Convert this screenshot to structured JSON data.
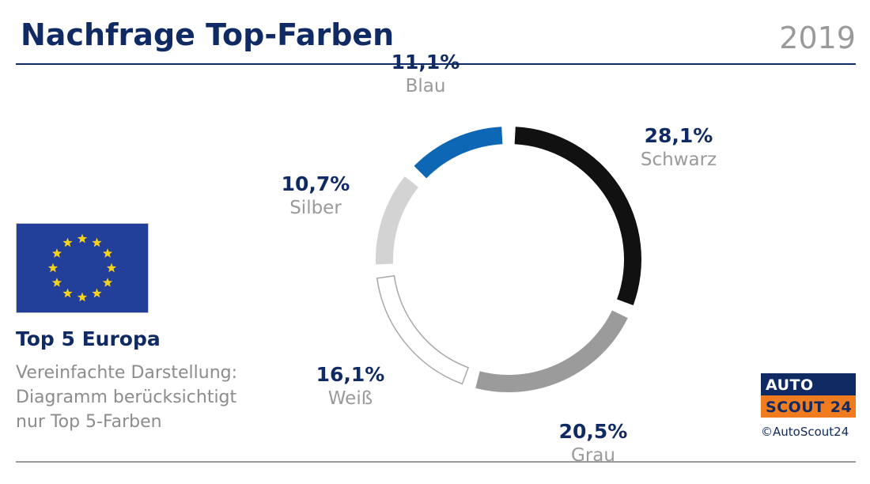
{
  "header": {
    "title": "Nachfrage Top-Farben",
    "year": "2019"
  },
  "region": {
    "flag_icon": "eu-flag-icon",
    "title": "Top 5 Europa",
    "note": "Vereinfachte Darstellung:\nDiagramm berücksichtigt\nnur Top 5-Farben"
  },
  "brand": {
    "line1": "AUTO",
    "line2": "SCOUT 24",
    "copyright": "©AutoScout24"
  },
  "colors": {
    "navy": "#102a63",
    "orange": "#f07c1f",
    "schwarz": "#111111",
    "grau": "#9b9b9b",
    "weiss": "#ffffff",
    "silber": "#d3d3d3",
    "blau": "#0d67b5"
  },
  "chart_data": {
    "type": "pie",
    "title": "Nachfrage Top-Farben",
    "subtitle": "2019",
    "categories": [
      "Schwarz",
      "Grau",
      "Weiß",
      "Silber",
      "Blau"
    ],
    "values": [
      28.1,
      20.5,
      16.1,
      10.7,
      11.1
    ],
    "labels": [
      "28,1%",
      "20,5%",
      "16,1%",
      "10,7%",
      "11,1%"
    ],
    "colors": [
      "#111111",
      "#9b9b9b",
      "#ffffff",
      "#d3d3d3",
      "#0d67b5"
    ],
    "donut": true
  }
}
